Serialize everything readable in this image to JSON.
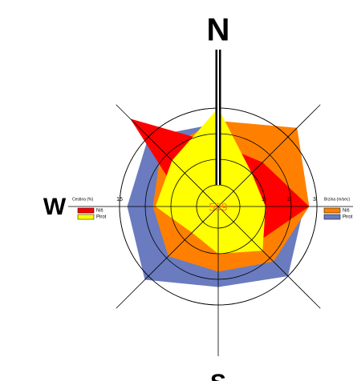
{
  "chart_data": {
    "type": "windrose",
    "categories": [
      "N",
      null,
      null,
      null,
      "S",
      null,
      "W",
      null
    ],
    "calm": "599",
    "ylabel": "Cestina  (%)",
    "y2label": "Brzina (m/sec)",
    "ylim": [
      0,
      15
    ],
    "yticks": [
      15
    ],
    "y2lim": [
      0,
      3
    ],
    "y2ticks": [
      1,
      2,
      3
    ],
    "series": [
      {
        "name": "Pirot",
        "color": "#6a7bbf",
        "axis": "y2",
        "values": [
          2.4,
          3,
          2.5,
          3,
          2.3,
          3.2,
          2.7,
          3
        ]
      },
      {
        "name": "Niš",
        "color": "#ff8000",
        "axis": "y2",
        "values": [
          2.5,
          3.5,
          2.7,
          2.2,
          1.7,
          1.9,
          1.7,
          2.3
        ]
      },
      {
        "name": "Niš",
        "color": "#ff0000",
        "values": [
          8,
          8,
          13.5,
          6,
          1,
          2,
          2,
          20
        ]
      },
      {
        "name": "Pirot",
        "color": "#ffff00",
        "values": [
          15,
          5,
          5,
          8,
          5,
          3,
          8,
          8.5
        ]
      }
    ]
  }
}
